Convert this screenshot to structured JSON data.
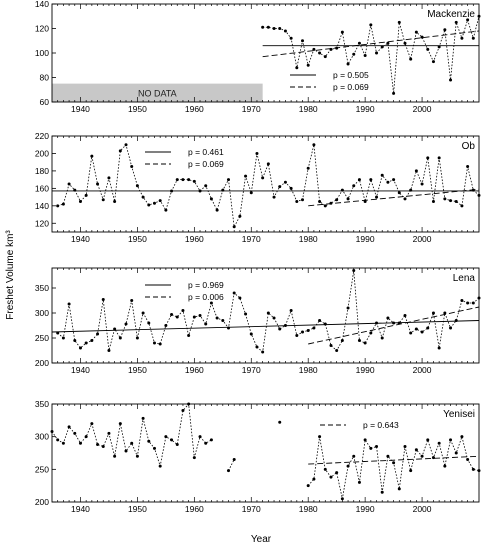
{
  "figure": {
    "ylabel": "Freshet Volume km³",
    "xlabel": "Year"
  },
  "chart_data": [
    {
      "type": "line",
      "title": "Mackenzie",
      "ylim": [
        60,
        140
      ],
      "yticks": [
        60,
        80,
        100,
        120,
        140
      ],
      "xlim": [
        1935,
        2010
      ],
      "xticks": [
        1940,
        1950,
        1960,
        1970,
        1980,
        1990,
        2000
      ],
      "no_data": {
        "label": "NO DATA",
        "x_range": [
          1935,
          1972
        ],
        "y_range": [
          60,
          75
        ]
      },
      "legend": [
        {
          "label": "p = 0.505",
          "style": "solid"
        },
        {
          "label": "p = 0.069",
          "style": "dashed"
        }
      ],
      "series": [
        {
          "x": [
            1972,
            1973,
            1974,
            1975,
            1976,
            1977,
            1978,
            1979,
            1980,
            1981,
            1982,
            1983,
            1984,
            1985,
            1986,
            1987,
            1988,
            1989,
            1990,
            1991,
            1992,
            1993,
            1994,
            1995,
            1996,
            1997,
            1998,
            1999,
            2000,
            2001,
            2002,
            2003,
            2004,
            2005,
            2006,
            2007,
            2008,
            2009,
            2010
          ],
          "y": [
            121,
            121,
            120,
            120,
            118,
            112,
            88,
            110,
            90,
            103,
            100,
            97,
            103,
            104,
            117,
            91,
            99,
            108,
            98,
            123,
            100,
            105,
            108,
            67,
            125,
            108,
            95,
            117,
            113,
            103,
            93,
            105,
            119,
            78,
            125,
            112,
            127,
            112,
            130
          ]
        }
      ],
      "trends": [
        {
          "style": "solid",
          "x": [
            1972,
            2010
          ],
          "y": [
            106,
            106
          ]
        },
        {
          "style": "dashed",
          "x": [
            1972,
            2010
          ],
          "y": [
            97,
            118
          ]
        }
      ]
    },
    {
      "type": "line",
      "title": "Ob",
      "ylim": [
        110,
        220
      ],
      "yticks": [
        120,
        140,
        160,
        180,
        200,
        220
      ],
      "xlim": [
        1935,
        2010
      ],
      "xticks": [
        1940,
        1950,
        1960,
        1970,
        1980,
        1990,
        2000
      ],
      "legend": [
        {
          "label": "p = 0.461",
          "style": "solid"
        },
        {
          "label": "p = 0.069",
          "style": "dashed"
        }
      ],
      "series": [
        {
          "x": [
            1936,
            1937,
            1938,
            1939,
            1940,
            1941,
            1942,
            1943,
            1944,
            1945,
            1946,
            1947,
            1948,
            1949,
            1950,
            1951,
            1952,
            1953,
            1954,
            1955,
            1956,
            1957,
            1958,
            1959,
            1960,
            1961,
            1962,
            1963,
            1964,
            1965,
            1966,
            1967,
            1968,
            1969,
            1970,
            1971,
            1972,
            1973,
            1974,
            1975,
            1976,
            1977,
            1978,
            1979,
            1980,
            1981,
            1982,
            1983,
            1984,
            1985,
            1986,
            1987,
            1988,
            1989,
            1990,
            1991,
            1992,
            1993,
            1994,
            1995,
            1996,
            1997,
            1998,
            1999,
            2000,
            2001,
            2002,
            2003,
            2004,
            2005,
            2006,
            2007,
            2008,
            2009,
            2010
          ],
          "y": [
            140,
            142,
            165,
            158,
            145,
            152,
            197,
            165,
            147,
            172,
            145,
            203,
            210,
            185,
            163,
            150,
            141,
            143,
            146,
            135,
            157,
            170,
            170,
            170,
            168,
            157,
            163,
            148,
            135,
            158,
            170,
            116,
            128,
            174,
            155,
            200,
            172,
            188,
            150,
            162,
            167,
            160,
            145,
            147,
            183,
            210,
            145,
            140,
            143,
            147,
            158,
            148,
            163,
            170,
            145,
            170,
            150,
            175,
            167,
            170,
            155,
            148,
            158,
            180,
            165,
            195,
            145,
            195,
            148,
            146,
            145,
            140,
            185,
            158,
            152
          ]
        }
      ],
      "trends": [
        {
          "style": "solid",
          "x": [
            1935,
            2010
          ],
          "y": [
            157,
            157
          ]
        },
        {
          "style": "dashed",
          "x": [
            1980,
            2010
          ],
          "y": [
            140,
            159
          ]
        }
      ]
    },
    {
      "type": "line",
      "title": "Lena",
      "ylim": [
        200,
        390
      ],
      "yticks": [
        200,
        250,
        300,
        350
      ],
      "xlim": [
        1935,
        2010
      ],
      "xticks": [
        1940,
        1950,
        1960,
        1970,
        1980,
        1990,
        2000
      ],
      "legend": [
        {
          "label": "p = 0.969",
          "style": "solid"
        },
        {
          "label": "p = 0.006",
          "style": "dashed"
        }
      ],
      "series": [
        {
          "x": [
            1936,
            1937,
            1938,
            1939,
            1940,
            1941,
            1942,
            1943,
            1944,
            1945,
            1946,
            1947,
            1948,
            1949,
            1950,
            1951,
            1952,
            1953,
            1954,
            1955,
            1956,
            1957,
            1958,
            1959,
            1960,
            1961,
            1962,
            1963,
            1964,
            1965,
            1966,
            1967,
            1968,
            1969,
            1970,
            1971,
            1972,
            1973,
            1974,
            1975,
            1976,
            1977,
            1978,
            1979,
            1980,
            1981,
            1982,
            1983,
            1984,
            1985,
            1986,
            1987,
            1988,
            1989,
            1990,
            1991,
            1992,
            1993,
            1994,
            1995,
            1996,
            1997,
            1998,
            1999,
            2000,
            2001,
            2002,
            2003,
            2004,
            2005,
            2006,
            2007,
            2008,
            2009,
            2010
          ],
          "y": [
            260,
            250,
            318,
            245,
            230,
            240,
            245,
            258,
            327,
            225,
            268,
            250,
            278,
            325,
            250,
            300,
            280,
            240,
            238,
            275,
            297,
            292,
            305,
            255,
            292,
            295,
            278,
            320,
            290,
            285,
            270,
            340,
            330,
            298,
            258,
            232,
            222,
            300,
            290,
            268,
            275,
            305,
            255,
            262,
            265,
            270,
            285,
            278,
            235,
            225,
            245,
            310,
            385,
            245,
            240,
            260,
            280,
            250,
            290,
            280,
            280,
            295,
            260,
            268,
            262,
            270,
            300,
            230,
            300,
            270,
            285,
            325,
            320,
            320,
            330
          ]
        }
      ],
      "trends": [
        {
          "style": "solid",
          "x": [
            1935,
            2010
          ],
          "y": [
            262,
            285
          ]
        },
        {
          "style": "dashed",
          "x": [
            1980,
            2010
          ],
          "y": [
            238,
            312
          ]
        }
      ]
    },
    {
      "type": "line",
      "title": "Yenisei",
      "ylim": [
        200,
        350
      ],
      "yticks": [
        200,
        250,
        300,
        350
      ],
      "xlim": [
        1935,
        2010
      ],
      "xticks": [
        1940,
        1950,
        1960,
        1970,
        1980,
        1990,
        2000
      ],
      "legend": [
        {
          "label": "p = 0.643",
          "style": "dashed"
        }
      ],
      "series": [
        {
          "x": [
            1935,
            1936,
            1937,
            1938,
            1939,
            1940,
            1941,
            1942,
            1943,
            1944,
            1945,
            1946,
            1947,
            1948,
            1949,
            1950,
            1951,
            1952,
            1953,
            1954,
            1955,
            1956,
            1957,
            1958,
            1959,
            1960,
            1961,
            1962,
            1963
          ],
          "y": [
            308,
            295,
            290,
            315,
            305,
            290,
            300,
            320,
            288,
            285,
            305,
            270,
            320,
            278,
            290,
            270,
            328,
            293,
            282,
            255,
            300,
            295,
            288,
            340,
            350,
            268,
            300,
            290,
            295
          ]
        },
        {
          "x": [
            1966,
            1967
          ],
          "y": [
            248,
            265
          ]
        },
        {
          "x": [
            1975
          ],
          "y": [
            322
          ]
        },
        {
          "x": [
            1980,
            1981,
            1982,
            1983,
            1984,
            1985,
            1986,
            1987,
            1988,
            1989,
            1990,
            1991,
            1992,
            1993,
            1994,
            1995,
            1996,
            1997,
            1998,
            1999,
            2000,
            2001,
            2002,
            2003,
            2004,
            2005,
            2006,
            2007,
            2008,
            2009,
            2010
          ],
          "y": [
            225,
            235,
            300,
            250,
            238,
            245,
            205,
            255,
            270,
            230,
            295,
            282,
            285,
            215,
            270,
            260,
            220,
            285,
            248,
            280,
            270,
            295,
            268,
            290,
            255,
            295,
            275,
            300,
            265,
            250,
            248
          ]
        }
      ],
      "trends": [
        {
          "style": "dashed",
          "x": [
            1980,
            2010
          ],
          "y": [
            258,
            270
          ]
        }
      ]
    }
  ]
}
